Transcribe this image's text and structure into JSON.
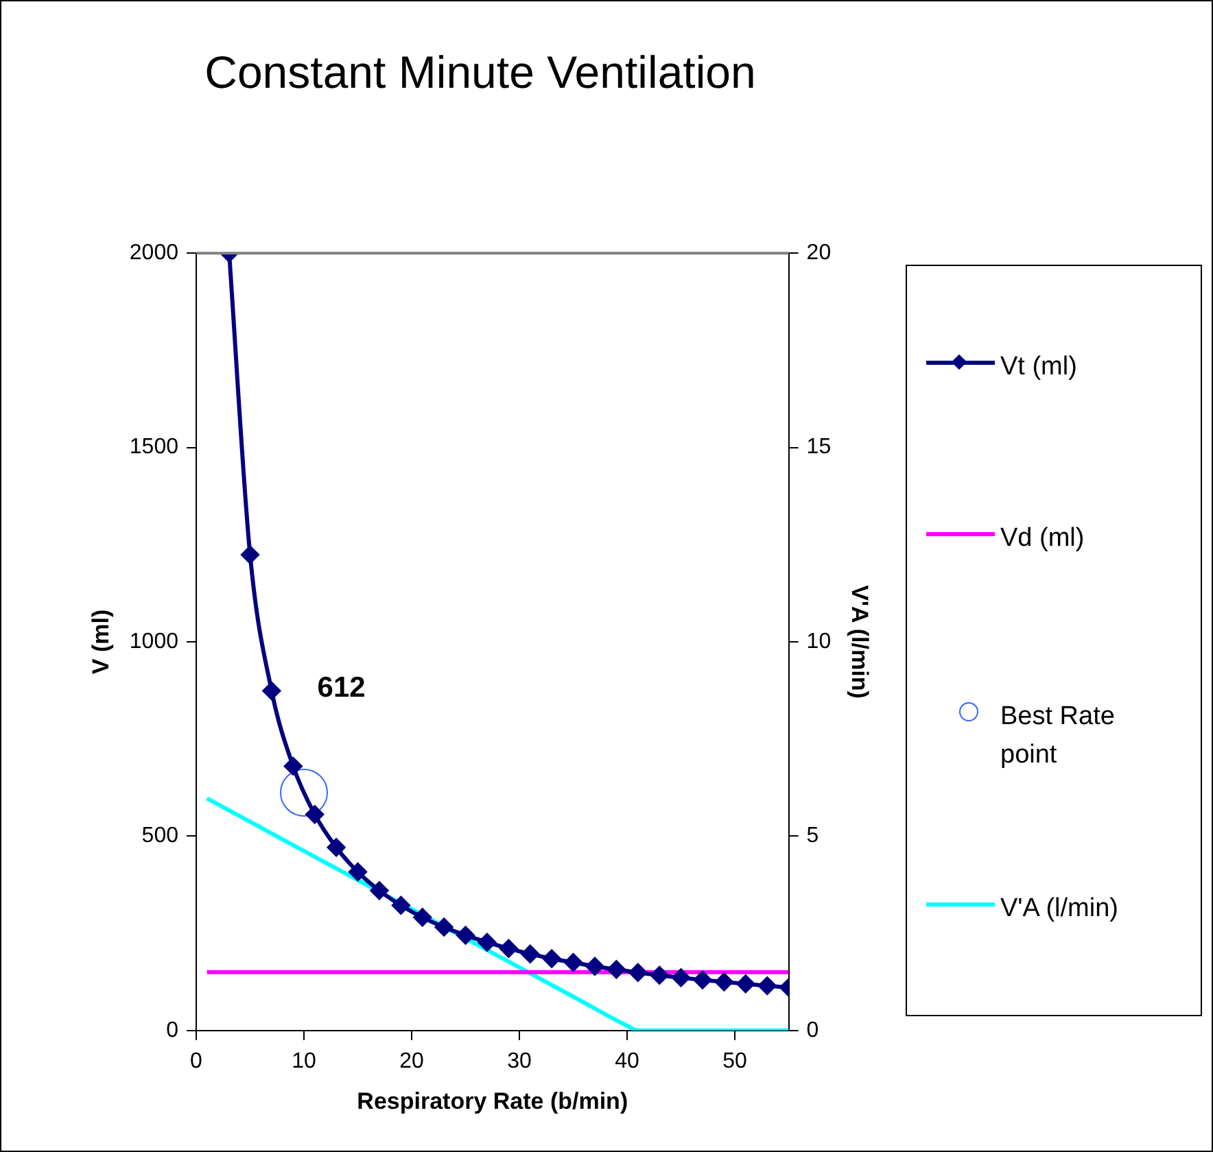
{
  "chart_data": {
    "type": "line",
    "title": "Constant Minute Ventilation",
    "xlabel": "Respiratory Rate (b/min)",
    "ylabel": "V (ml)",
    "y2label": "V'A (l/min)",
    "xlim": [
      0,
      55
    ],
    "xticks": [
      0,
      10,
      20,
      30,
      40,
      50
    ],
    "ylim": [
      0,
      2000
    ],
    "yticks": [
      0,
      500,
      1000,
      1500,
      2000
    ],
    "y2lim": [
      0,
      20
    ],
    "y2ticks": [
      0,
      5,
      10,
      15,
      20
    ],
    "legend": "right",
    "grid": false,
    "series": [
      {
        "name": "Vt (ml)",
        "marker": "diamond",
        "color": "#000080",
        "x": [
          3.06,
          5,
          7,
          9,
          11,
          13,
          15,
          17,
          19,
          21,
          23,
          25,
          27,
          29,
          31,
          33,
          35,
          37,
          39,
          41,
          43,
          45,
          47,
          49,
          51,
          53,
          55
        ],
        "values": [
          2000,
          1224,
          874,
          680,
          556,
          471,
          408,
          360,
          322,
          291,
          266,
          245,
          227,
          211,
          197,
          185,
          175,
          165,
          157,
          149,
          142,
          136,
          130,
          125,
          120,
          115,
          111
        ]
      },
      {
        "name": "Vd (ml)",
        "marker": "none",
        "color": "#ff00ff",
        "x": [
          1,
          55
        ],
        "values": [
          150,
          150
        ]
      },
      {
        "name": "Best Rate point",
        "type": "scatter",
        "marker": "circle",
        "color": "#3366ff",
        "x": [
          10
        ],
        "values": [
          612
        ]
      },
      {
        "name": "V'A (l/min)",
        "marker": "none",
        "axis": "y2",
        "color": "#00ffff",
        "x": [
          1,
          5,
          10,
          15,
          20,
          25,
          30,
          35,
          40,
          41,
          45,
          50,
          55
        ],
        "values": [
          5.97,
          5.37,
          4.62,
          3.87,
          3.12,
          2.37,
          1.62,
          0.87,
          0.12,
          0,
          0,
          0,
          0
        ]
      }
    ],
    "annotations": [
      "612"
    ]
  }
}
